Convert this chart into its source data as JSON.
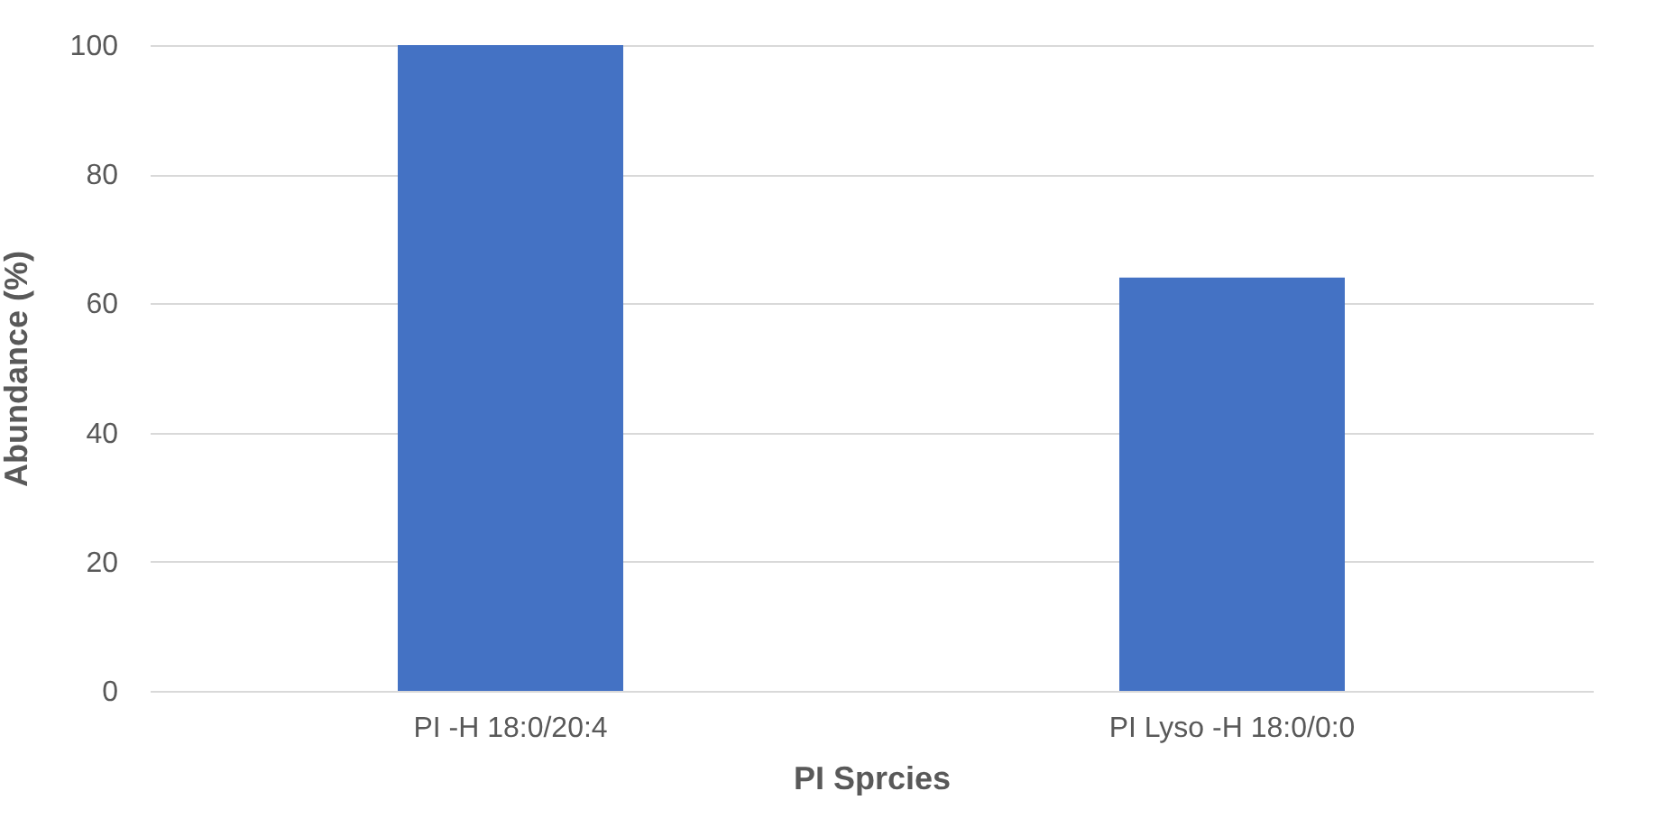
{
  "chart_data": {
    "type": "bar",
    "xlabel": "PI Sprcies",
    "ylabel": "Abundance (%)",
    "categories": [
      "PI -H 18:0/20:4",
      "PI Lyso -H 18:0/0:0"
    ],
    "values": [
      100,
      64
    ],
    "color": "#4472c4",
    "ylim": [
      0,
      100
    ],
    "yticks": [
      0,
      20,
      40,
      60,
      80,
      100
    ],
    "grid": "y"
  }
}
